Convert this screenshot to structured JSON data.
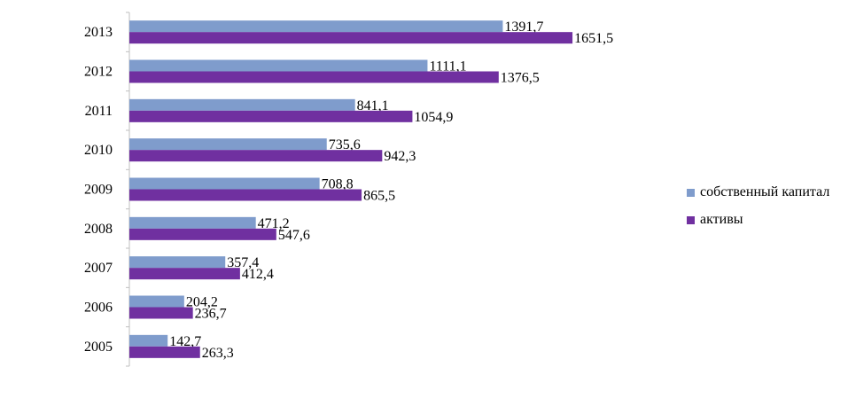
{
  "chart_data": {
    "type": "bar",
    "orientation": "horizontal",
    "categories": [
      "2013",
      "2012",
      "2011",
      "2010",
      "2009",
      "2008",
      "2007",
      "2006",
      "2005"
    ],
    "series": [
      {
        "name": "собственный капитал",
        "color": "#7f9ccc",
        "values": [
          1391.7,
          1111.1,
          841.1,
          735.6,
          708.8,
          471.2,
          357.4,
          204.2,
          142.7
        ],
        "labels": [
          "1391,7",
          "1111,1",
          "841,1",
          "735,6",
          "708,8",
          "471,2",
          "357,4",
          "204,2",
          "142,7"
        ]
      },
      {
        "name": "активы",
        "color": "#7030a0",
        "values": [
          1651.5,
          1376.5,
          1054.9,
          942.3,
          865.5,
          547.6,
          412.4,
          236.7,
          263.3
        ],
        "labels": [
          "1651,5",
          "1376,5",
          "1054,9",
          "942,3",
          "865,5",
          "547,6",
          "412,4",
          "236,7",
          "263,3"
        ]
      }
    ],
    "legend_position": "right",
    "grid": false
  },
  "legend": [
    {
      "label": "собственный капитал",
      "color": "#7f9ccc"
    },
    {
      "label": "активы",
      "color": "#7030a0"
    }
  ]
}
